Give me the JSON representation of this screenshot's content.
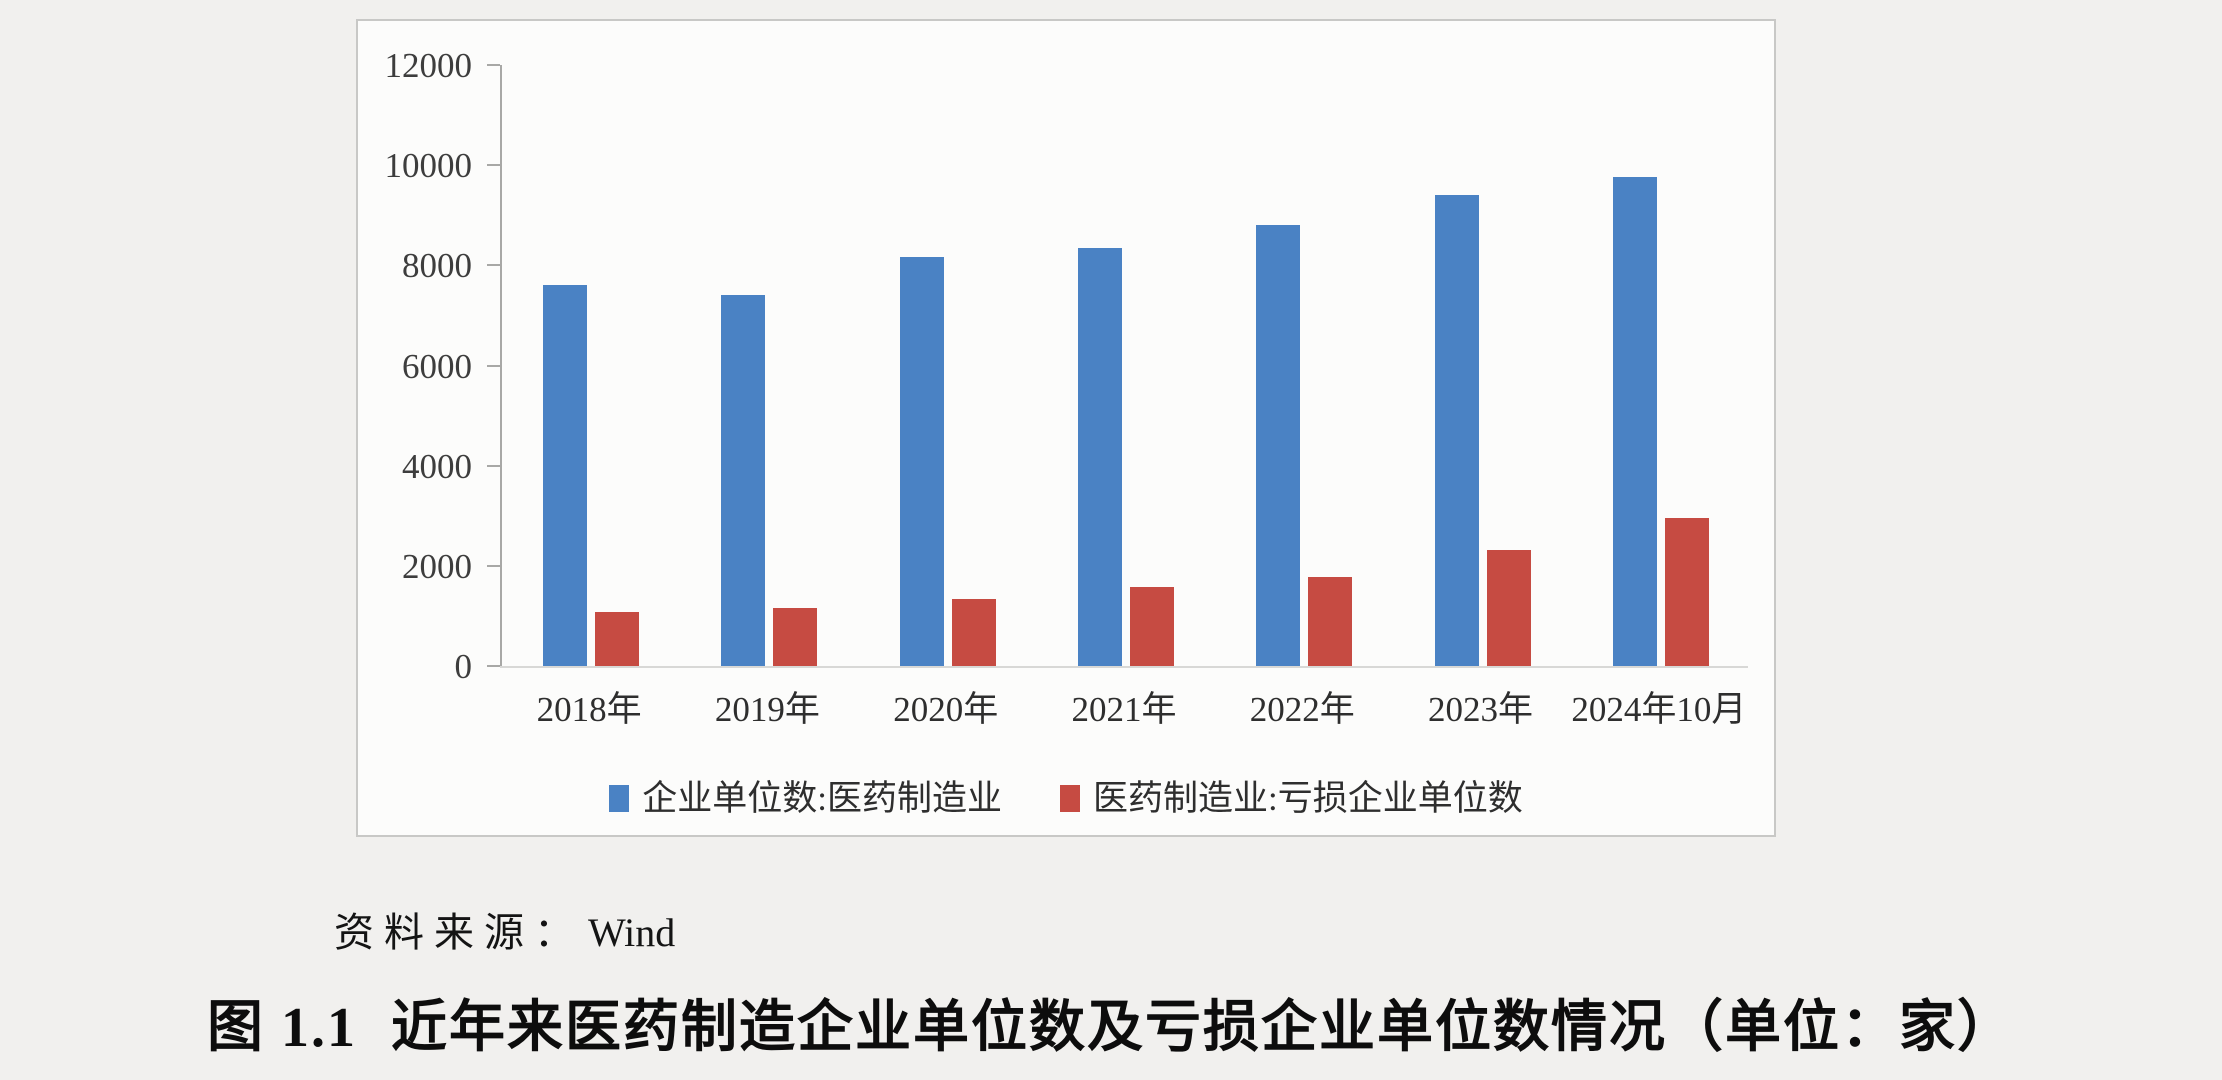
{
  "page": {
    "source_label": "资料来源：",
    "source_value": "Wind",
    "caption_number": "图 1.1",
    "caption_text": "近年来医药制造企业单位数及亏损企业单位数情况（单位：家）"
  },
  "colors": {
    "series_blue": "#4a82c4",
    "series_red": "#c64b42",
    "axis_line": "#a8a8a6",
    "baseline": "#d8d8d6",
    "panel_border": "#c8c8c6",
    "page_background": "#f1f0ee"
  },
  "chart_data": {
    "type": "bar",
    "categories": [
      "2018年",
      "2019年",
      "2020年",
      "2021年",
      "2022年",
      "2023年",
      "2024年10月"
    ],
    "series": [
      {
        "name": "企业单位数:医药制造业",
        "color": "#4a82c4",
        "values": [
          7600,
          7400,
          8170,
          8350,
          8810,
          9400,
          9760
        ]
      },
      {
        "name": "医药制造业:亏损企业单位数",
        "color": "#c64b42",
        "values": [
          1080,
          1160,
          1330,
          1580,
          1780,
          2310,
          2950
        ]
      }
    ],
    "title": "",
    "xlabel": "",
    "ylabel": "",
    "ylim": [
      0,
      12000
    ],
    "yticks": [
      0,
      2000,
      4000,
      6000,
      8000,
      10000,
      12000
    ],
    "grid": false,
    "legend_position": "bottom"
  }
}
